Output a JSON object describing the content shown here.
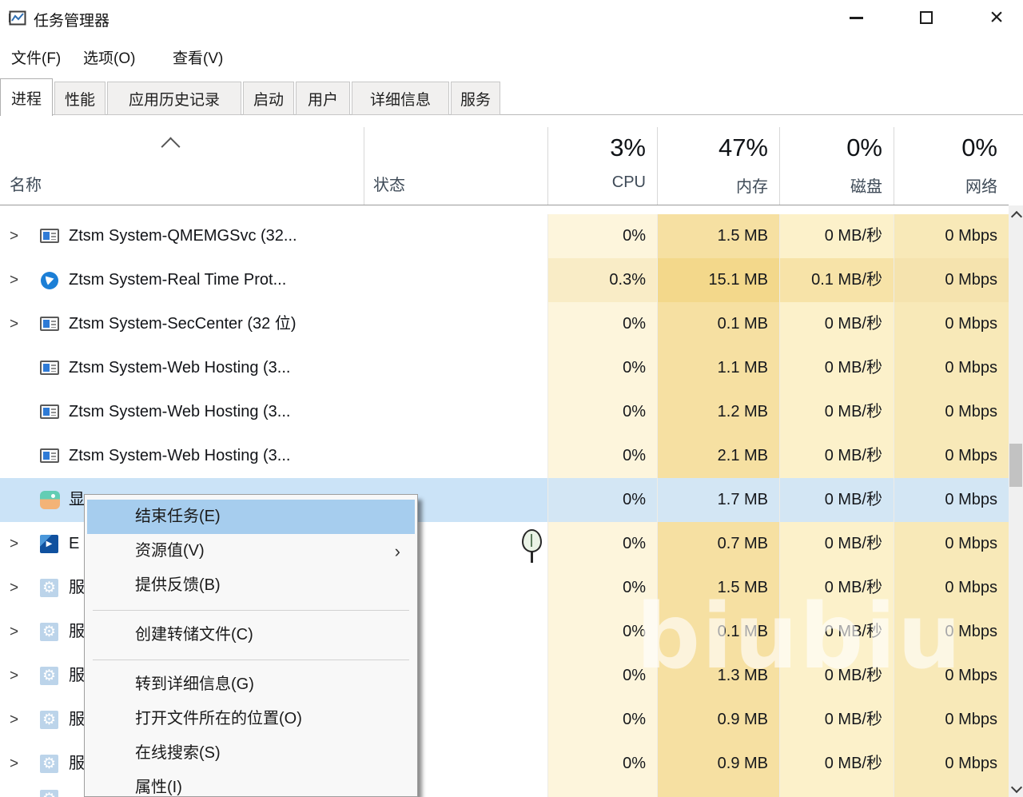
{
  "window": {
    "title": "任务管理器",
    "close_glyph": "×"
  },
  "menubar": {
    "items": [
      {
        "label": "文件(F)"
      },
      {
        "label": "选项(O)"
      },
      {
        "label": "查看(V)"
      }
    ]
  },
  "tabs": [
    {
      "label": "进程",
      "active": true
    },
    {
      "label": "性能",
      "active": false
    },
    {
      "label": "应用历史记录",
      "active": false
    },
    {
      "label": "启动",
      "active": false
    },
    {
      "label": "用户",
      "active": false
    },
    {
      "label": "详细信息",
      "active": false
    },
    {
      "label": "服务",
      "active": false
    }
  ],
  "table": {
    "columns": {
      "name": "名称",
      "status": "状态",
      "cpu": "CPU",
      "memory": "内存",
      "disk": "磁盘",
      "network": "网络"
    },
    "summary": {
      "cpu": "3%",
      "memory": "47%",
      "disk": "0%",
      "network": "0%"
    },
    "heat": {
      "cpu": "#fdf5dc",
      "memory": "#f6e0a2",
      "disk": "#fcf1ca",
      "network": "#f8e9b8",
      "selected": "#d3e6f4"
    },
    "rows": [
      {
        "expand": true,
        "icon": "app-window-icon",
        "name": "Ztsm System-QMEMGSvc (32...",
        "cpu": "0%",
        "memory": "1.5 MB",
        "disk": "0 MB/秒",
        "network": "0 Mbps"
      },
      {
        "expand": true,
        "icon": "shield-icon",
        "name": "Ztsm System-Real Time Prot...",
        "cpu": "0.3%",
        "memory": "15.1 MB",
        "disk": "0.1 MB/秒",
        "network": "0 Mbps",
        "colors": {
          "cpu": "#f9ecc6",
          "memory": "#f3d88b",
          "disk": "#f7e3a8",
          "network": "#f5e3ae"
        }
      },
      {
        "expand": true,
        "icon": "app-window-icon",
        "name": "Ztsm System-SecCenter (32 位)",
        "cpu": "0%",
        "memory": "0.1 MB",
        "disk": "0 MB/秒",
        "network": "0 Mbps"
      },
      {
        "expand": false,
        "icon": "app-window-icon",
        "name": "Ztsm System-Web Hosting (3...",
        "cpu": "0%",
        "memory": "1.1 MB",
        "disk": "0 MB/秒",
        "network": "0 Mbps"
      },
      {
        "expand": false,
        "icon": "app-window-icon",
        "name": "Ztsm System-Web Hosting (3...",
        "cpu": "0%",
        "memory": "1.2 MB",
        "disk": "0 MB/秒",
        "network": "0 Mbps"
      },
      {
        "expand": false,
        "icon": "app-window-icon",
        "name": "Ztsm System-Web Hosting (3...",
        "cpu": "0%",
        "memory": "2.1 MB",
        "disk": "0 MB/秒",
        "network": "0 Mbps"
      },
      {
        "expand": false,
        "icon": "photo-icon",
        "name": "显",
        "selected": true,
        "cpu": "0%",
        "memory": "1.7 MB",
        "disk": "0 MB/秒",
        "network": "0 Mbps"
      },
      {
        "expand": true,
        "icon": "media-icon",
        "name": "E",
        "cpu": "0%",
        "memory": "0.7 MB",
        "disk": "0 MB/秒",
        "network": "0 Mbps"
      },
      {
        "expand": true,
        "icon": "gear-icon",
        "name": "服",
        "cpu": "0%",
        "memory": "1.5 MB",
        "disk": "0 MB/秒",
        "network": "0 Mbps"
      },
      {
        "expand": true,
        "icon": "gear-icon",
        "name": "服",
        "cpu": "0%",
        "memory": "0.1 MB",
        "disk": "0 MB/秒",
        "network": "0 Mbps"
      },
      {
        "expand": true,
        "icon": "gear-icon",
        "name": "服",
        "cpu": "0%",
        "memory": "1.3 MB",
        "disk": "0 MB/秒",
        "network": "0 Mbps"
      },
      {
        "expand": true,
        "icon": "gear-icon",
        "name": "服",
        "cpu": "0%",
        "memory": "0.9 MB",
        "disk": "0 MB/秒",
        "network": "0 Mbps"
      },
      {
        "expand": true,
        "icon": "gear-icon",
        "name": "服",
        "cpu": "0%",
        "memory": "0.9 MB",
        "disk": "0 MB/秒",
        "network": "0 Mbps"
      },
      {
        "expand": false,
        "icon": "gear-icon",
        "name": "",
        "partial": true,
        "cpu": "",
        "memory": "",
        "disk": "",
        "network": ""
      }
    ]
  },
  "context_menu": {
    "items": [
      {
        "label": "结束任务(E)",
        "highlighted": true
      },
      {
        "label": "资源值(V)",
        "submenu": true
      },
      {
        "label": "提供反馈(B)"
      },
      {
        "separator": true
      },
      {
        "label": "创建转储文件(C)"
      },
      {
        "separator": true
      },
      {
        "label": "转到详细信息(G)"
      },
      {
        "label": "打开文件所在的位置(O)"
      },
      {
        "label": "在线搜索(S)"
      },
      {
        "label": "属性(I)"
      }
    ]
  },
  "glyphs": {
    "expand": ">",
    "submenu": "›",
    "play": "▶",
    "gear": "⚙"
  },
  "watermark": "biubiu"
}
